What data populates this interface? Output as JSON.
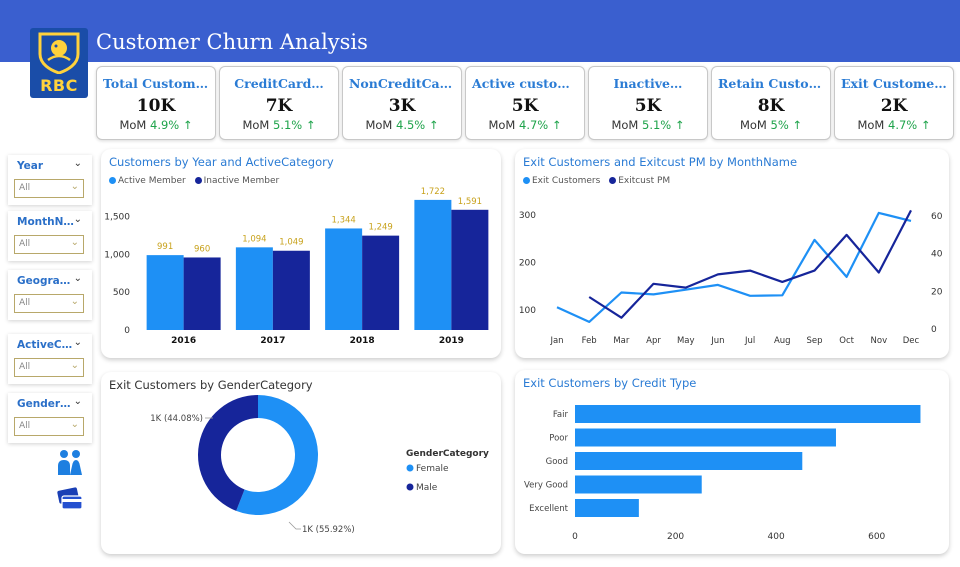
{
  "header": {
    "title": "Customer Churn Analysis",
    "logo_text": "RBC"
  },
  "colors": {
    "header_bg": "#3a5fcf",
    "primary_series": "#1e90f5",
    "secondary_series": "#16259a",
    "kpi_label": "#2a7bd4",
    "mom_positive": "#1ea34a",
    "data_label": "#c8a21c"
  },
  "kpis": [
    {
      "label": "Total Customers",
      "value": "10K",
      "mom_label": "MoM",
      "mom_value": "4.9%",
      "arrow": "↑"
    },
    {
      "label": "CreditCard…",
      "value": "7K",
      "mom_label": "MoM",
      "mom_value": "5.1%",
      "arrow": "↑"
    },
    {
      "label": "NonCreditCard…",
      "value": "3K",
      "mom_label": "MoM",
      "mom_value": "4.5%",
      "arrow": "↑"
    },
    {
      "label": "Active customers",
      "value": "5K",
      "mom_label": "MoM",
      "mom_value": "4.7%",
      "arrow": "↑"
    },
    {
      "label": "Inactive…",
      "value": "5K",
      "mom_label": "MoM",
      "mom_value": "5.1%",
      "arrow": "↑"
    },
    {
      "label": "Retain Customers",
      "value": "8K",
      "mom_label": "MoM",
      "mom_value": "5%",
      "arrow": "↑"
    },
    {
      "label": "Exit Customers",
      "value": "2K",
      "mom_label": "MoM",
      "mom_value": "4.7%",
      "arrow": "↑"
    }
  ],
  "slicers": [
    {
      "title": "Year",
      "value": "All"
    },
    {
      "title": "MonthN…",
      "value": "All"
    },
    {
      "title": "Geogra…",
      "value": "All"
    },
    {
      "title": "ActiveC…",
      "value": "All"
    },
    {
      "title": "Gender…",
      "value": "All"
    }
  ],
  "sidebar_icons": [
    "people-icon",
    "credit-card-icon"
  ],
  "chart_data": [
    {
      "id": "bar_year",
      "type": "bar",
      "title": "Customers by Year and ActiveCategory",
      "categories": [
        "2016",
        "2017",
        "2018",
        "2019"
      ],
      "series": [
        {
          "name": "Active Member",
          "values": [
            991,
            1094,
            1344,
            1722
          ]
        },
        {
          "name": "Inactive Member",
          "values": [
            960,
            1049,
            1249,
            1591
          ]
        }
      ],
      "data_labels": [
        [
          "991",
          "1,094",
          "1,344",
          "1,722"
        ],
        [
          "960",
          "1,049",
          "1,249",
          "1,591"
        ]
      ],
      "ylim": [
        0,
        1800
      ],
      "yticks": [
        "0",
        "500",
        "1,000",
        "1,500"
      ],
      "ytick_values": [
        0,
        500,
        1000,
        1500
      ],
      "legend_position": "top-left"
    },
    {
      "id": "line_month",
      "type": "line",
      "title": "Exit Customers and Exitcust PM by MonthName",
      "categories": [
        "Jan",
        "Feb",
        "Mar",
        "Apr",
        "May",
        "Jun",
        "Jul",
        "Aug",
        "Sep",
        "Oct",
        "Nov",
        "Dec"
      ],
      "series": [
        {
          "name": "Exit Customers",
          "axis": "left",
          "values": [
            106,
            75,
            137,
            133,
            143,
            153,
            130,
            131,
            248,
            170,
            305,
            288
          ]
        },
        {
          "name": "Exitcust PM",
          "axis": "right",
          "values": [
            null,
            17,
            6,
            24,
            22,
            29,
            31,
            25,
            31,
            50,
            30,
            63
          ]
        }
      ],
      "ylim_left": [
        60,
        330
      ],
      "yticks_left": [
        "100",
        "200",
        "300"
      ],
      "ytick_values_left": [
        100,
        200,
        300
      ],
      "ylim_right": [
        0,
        68
      ],
      "yticks_right": [
        "0",
        "20",
        "40",
        "60"
      ],
      "ytick_values_right": [
        0,
        20,
        40,
        60
      ],
      "legend_position": "top-left"
    },
    {
      "id": "donut_gender",
      "type": "pie",
      "title": "Exit Customers by GenderCategory",
      "legend_title": "GenderCategory",
      "slices": [
        {
          "name": "Female",
          "share": 0.5592,
          "label": "1K (55.92%)"
        },
        {
          "name": "Male",
          "share": 0.4408,
          "label": "1K (44.08%)"
        }
      ],
      "legend_position": "right"
    },
    {
      "id": "hbar_credit",
      "type": "bar",
      "orientation": "horizontal",
      "title": "Exit Customers by Credit Type",
      "categories": [
        "Fair",
        "Poor",
        "Good",
        "Very Good",
        "Excellent"
      ],
      "values": [
        687,
        519,
        452,
        252,
        127
      ],
      "xlim": [
        0,
        700
      ],
      "xticks": [
        "0",
        "200",
        "400",
        "600"
      ],
      "xtick_values": [
        0,
        200,
        400,
        600
      ]
    }
  ]
}
